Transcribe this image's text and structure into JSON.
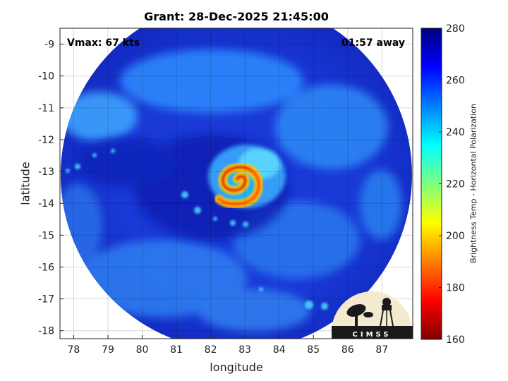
{
  "header": {
    "title": "Grant: 28-Dec-2025 21:45:00"
  },
  "annotations": {
    "vmax": "Vmax: 67 kts",
    "away": "01:57 away"
  },
  "axes": {
    "xlabel": "longitude",
    "ylabel": "latitude",
    "xticks": [
      "78",
      "79",
      "80",
      "81",
      "82",
      "83",
      "84",
      "85",
      "86",
      "87"
    ],
    "yticks": [
      "-9",
      "-10",
      "-11",
      "-12",
      "-13",
      "-14",
      "-15",
      "-16",
      "-17",
      "-18"
    ],
    "xlim": [
      77.6,
      87.9
    ],
    "ylim": [
      -18.25,
      -8.5
    ],
    "grid": true
  },
  "colorbar": {
    "label": "Brightness Temp - Horizontal Polarization",
    "ticks": [
      "280",
      "260",
      "240",
      "220",
      "200",
      "180",
      "160"
    ],
    "range": [
      160,
      280
    ],
    "colormap": "jet"
  },
  "storm": {
    "center_lon": 82.8,
    "center_lat": -13.2
  },
  "logo": {
    "text": "CIMSS"
  },
  "colors": {
    "bg_blue": "#1c3fe0",
    "axis": "#222222"
  }
}
